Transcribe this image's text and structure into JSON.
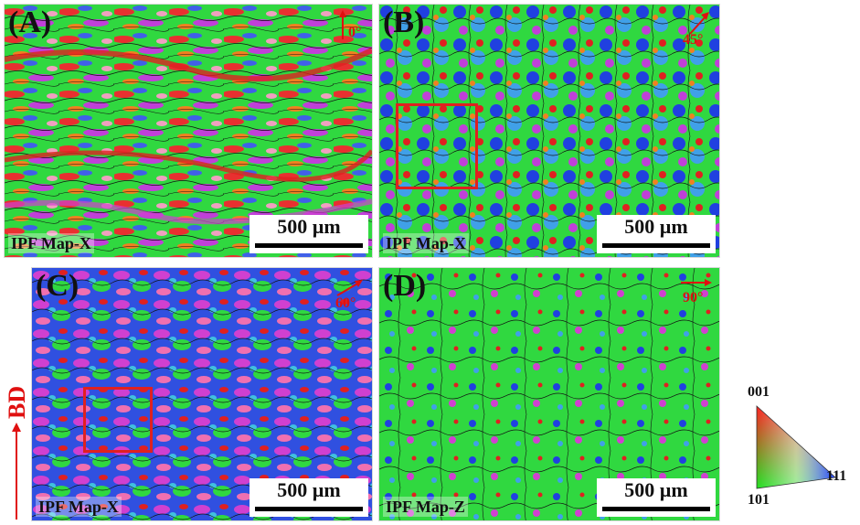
{
  "panels": [
    {
      "label": "(A)",
      "map_label": "IPF Map-X",
      "scale_label": "500 µm",
      "angle_label": "0°",
      "angle_deg": 0
    },
    {
      "label": "(B)",
      "map_label": "IPF Map-X",
      "scale_label": "500 µm",
      "angle_label": "45°",
      "angle_deg": 45
    },
    {
      "label": "(C)",
      "map_label": "IPF Map-X",
      "scale_label": "500 µm",
      "angle_label": "60°",
      "angle_deg": 60
    },
    {
      "label": "(D)",
      "map_label": "IPF Map-Z",
      "scale_label": "500 µm",
      "angle_label": "90°",
      "angle_deg": 90
    }
  ],
  "build_direction_label": "BD",
  "legend": {
    "top_label": "001",
    "bottom_left_label": "101",
    "right_label": "111"
  },
  "colors": {
    "annotation_red": "#e01010",
    "grain_green": "#22e022",
    "grain_blue": "#2040e0",
    "grain_red": "#e02020",
    "grain_magenta": "#d040d0"
  }
}
